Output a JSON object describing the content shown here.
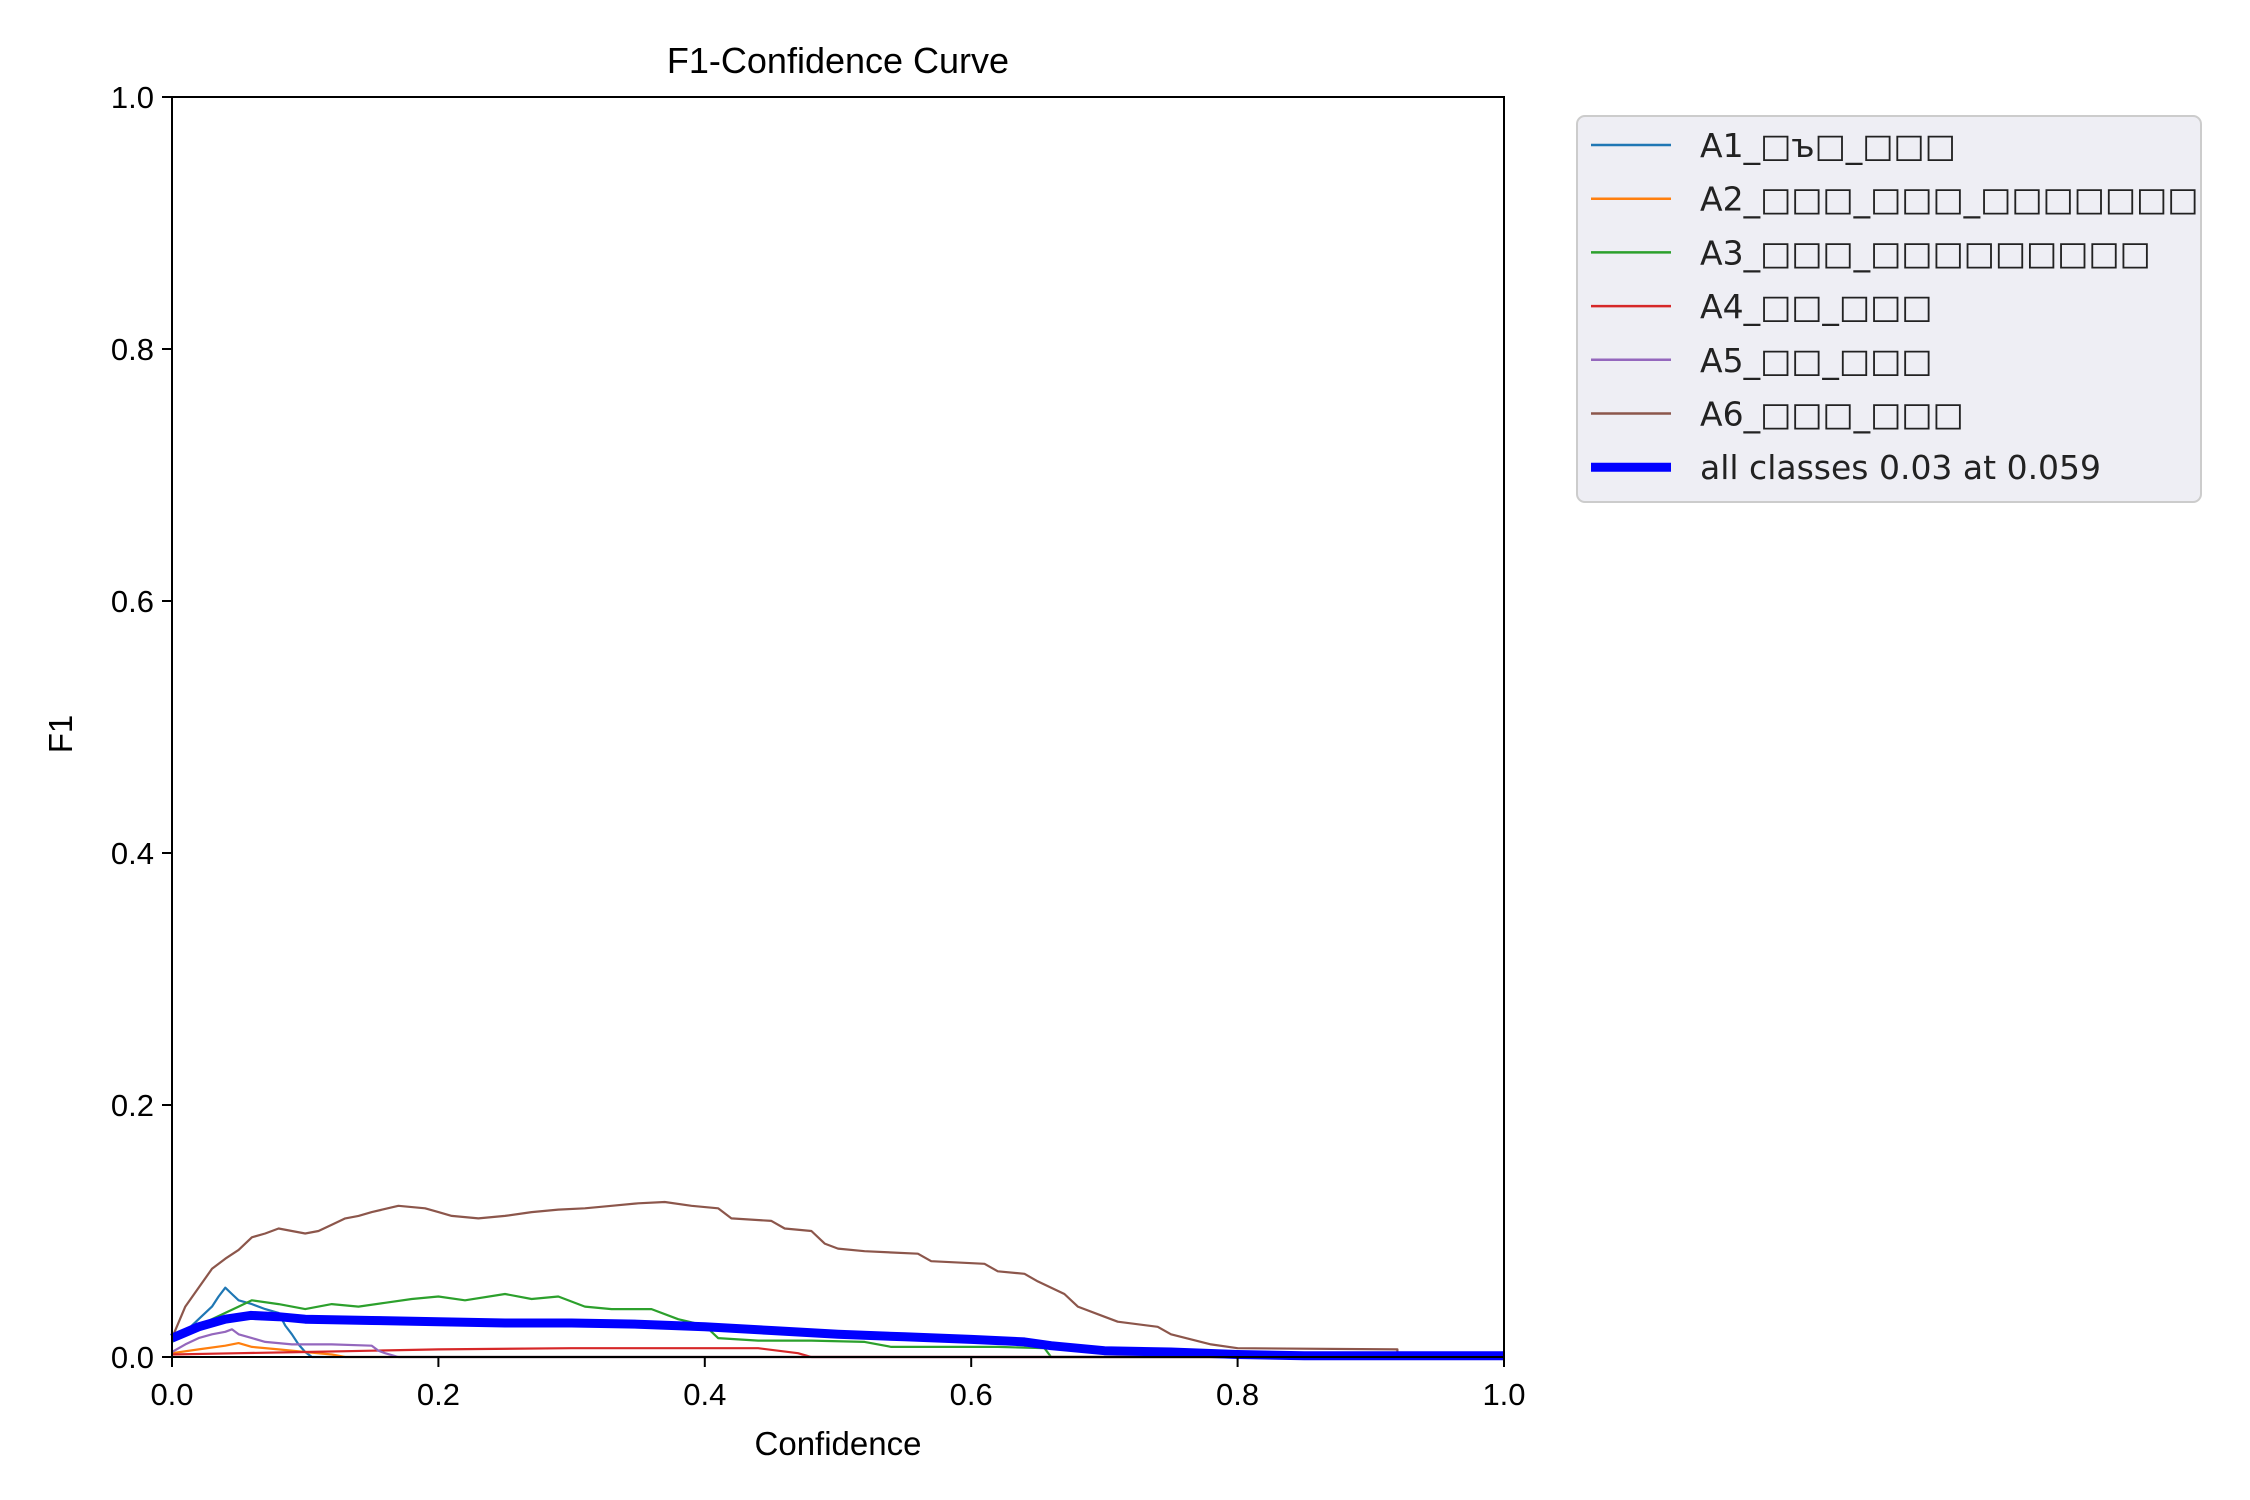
{
  "chart_data": {
    "type": "line",
    "title": "F1-Confidence Curve",
    "xlabel": "Confidence",
    "ylabel": "F1",
    "xlim": [
      0.0,
      1.0
    ],
    "ylim": [
      0.0,
      1.0
    ],
    "xticks": [
      "0.0",
      "0.2",
      "0.4",
      "0.6",
      "0.8",
      "1.0"
    ],
    "yticks": [
      "0.0",
      "0.2",
      "0.4",
      "0.6",
      "0.8",
      "1.0"
    ],
    "grid": false,
    "legend_position": "outside-top-right",
    "series": [
      {
        "name": "A1_□ъ□_□□□",
        "color": "#1f77b4",
        "points": [
          [
            0.0,
            0.012
          ],
          [
            0.01,
            0.02
          ],
          [
            0.02,
            0.03
          ],
          [
            0.03,
            0.04
          ],
          [
            0.035,
            0.048
          ],
          [
            0.04,
            0.055
          ],
          [
            0.045,
            0.05
          ],
          [
            0.05,
            0.045
          ],
          [
            0.06,
            0.042
          ],
          [
            0.07,
            0.038
          ],
          [
            0.08,
            0.035
          ],
          [
            0.085,
            0.025
          ],
          [
            0.09,
            0.018
          ],
          [
            0.095,
            0.01
          ],
          [
            0.1,
            0.004
          ],
          [
            0.105,
            0.0
          ],
          [
            1.0,
            0.0
          ]
        ]
      },
      {
        "name": "A2_□□□_□□□_□□□□□□□",
        "color": "#ff7f0e",
        "points": [
          [
            0.0,
            0.003
          ],
          [
            0.02,
            0.006
          ],
          [
            0.04,
            0.009
          ],
          [
            0.05,
            0.011
          ],
          [
            0.06,
            0.008
          ],
          [
            0.08,
            0.006
          ],
          [
            0.1,
            0.004
          ],
          [
            0.12,
            0.002
          ],
          [
            0.13,
            0.0
          ],
          [
            1.0,
            0.0
          ]
        ]
      },
      {
        "name": "A3_□□□_□□□□□□□□□",
        "color": "#2ca02c",
        "points": [
          [
            0.0,
            0.012
          ],
          [
            0.02,
            0.025
          ],
          [
            0.04,
            0.035
          ],
          [
            0.05,
            0.04
          ],
          [
            0.06,
            0.045
          ],
          [
            0.08,
            0.042
          ],
          [
            0.1,
            0.038
          ],
          [
            0.12,
            0.042
          ],
          [
            0.14,
            0.04
          ],
          [
            0.16,
            0.043
          ],
          [
            0.18,
            0.046
          ],
          [
            0.2,
            0.048
          ],
          [
            0.22,
            0.045
          ],
          [
            0.25,
            0.05
          ],
          [
            0.27,
            0.046
          ],
          [
            0.29,
            0.048
          ],
          [
            0.31,
            0.04
          ],
          [
            0.33,
            0.038
          ],
          [
            0.36,
            0.038
          ],
          [
            0.38,
            0.03
          ],
          [
            0.4,
            0.025
          ],
          [
            0.41,
            0.015
          ],
          [
            0.44,
            0.013
          ],
          [
            0.48,
            0.013
          ],
          [
            0.52,
            0.012
          ],
          [
            0.54,
            0.008
          ],
          [
            0.58,
            0.008
          ],
          [
            0.62,
            0.008
          ],
          [
            0.655,
            0.007
          ],
          [
            0.66,
            0.0
          ],
          [
            1.0,
            0.0
          ]
        ]
      },
      {
        "name": "A4_□□_□□□",
        "color": "#d62728",
        "points": [
          [
            0.0,
            0.002
          ],
          [
            0.05,
            0.003
          ],
          [
            0.1,
            0.004
          ],
          [
            0.15,
            0.005
          ],
          [
            0.2,
            0.006
          ],
          [
            0.3,
            0.007
          ],
          [
            0.4,
            0.007
          ],
          [
            0.44,
            0.007
          ],
          [
            0.47,
            0.003
          ],
          [
            0.48,
            0.0
          ],
          [
            1.0,
            0.0
          ]
        ]
      },
      {
        "name": "A5_□□_□□□",
        "color": "#9467bd",
        "points": [
          [
            0.0,
            0.004
          ],
          [
            0.01,
            0.01
          ],
          [
            0.02,
            0.015
          ],
          [
            0.03,
            0.018
          ],
          [
            0.04,
            0.02
          ],
          [
            0.045,
            0.022
          ],
          [
            0.05,
            0.018
          ],
          [
            0.06,
            0.015
          ],
          [
            0.07,
            0.012
          ],
          [
            0.09,
            0.01
          ],
          [
            0.12,
            0.01
          ],
          [
            0.15,
            0.009
          ],
          [
            0.155,
            0.005
          ],
          [
            0.16,
            0.003
          ],
          [
            0.17,
            0.0
          ],
          [
            1.0,
            0.0
          ]
        ]
      },
      {
        "name": "A6_□□□_□□□",
        "color": "#8c564b",
        "points": [
          [
            0.0,
            0.015
          ],
          [
            0.01,
            0.04
          ],
          [
            0.02,
            0.055
          ],
          [
            0.03,
            0.07
          ],
          [
            0.04,
            0.078
          ],
          [
            0.05,
            0.085
          ],
          [
            0.06,
            0.095
          ],
          [
            0.07,
            0.098
          ],
          [
            0.08,
            0.102
          ],
          [
            0.09,
            0.1
          ],
          [
            0.1,
            0.098
          ],
          [
            0.11,
            0.1
          ],
          [
            0.12,
            0.105
          ],
          [
            0.13,
            0.11
          ],
          [
            0.14,
            0.112
          ],
          [
            0.15,
            0.115
          ],
          [
            0.17,
            0.12
          ],
          [
            0.19,
            0.118
          ],
          [
            0.2,
            0.115
          ],
          [
            0.21,
            0.112
          ],
          [
            0.23,
            0.11
          ],
          [
            0.25,
            0.112
          ],
          [
            0.27,
            0.115
          ],
          [
            0.29,
            0.117
          ],
          [
            0.31,
            0.118
          ],
          [
            0.33,
            0.12
          ],
          [
            0.35,
            0.122
          ],
          [
            0.37,
            0.123
          ],
          [
            0.39,
            0.12
          ],
          [
            0.41,
            0.118
          ],
          [
            0.42,
            0.11
          ],
          [
            0.45,
            0.108
          ],
          [
            0.46,
            0.102
          ],
          [
            0.48,
            0.1
          ],
          [
            0.49,
            0.09
          ],
          [
            0.5,
            0.086
          ],
          [
            0.52,
            0.084
          ],
          [
            0.56,
            0.082
          ],
          [
            0.57,
            0.076
          ],
          [
            0.61,
            0.074
          ],
          [
            0.62,
            0.068
          ],
          [
            0.64,
            0.066
          ],
          [
            0.65,
            0.06
          ],
          [
            0.67,
            0.05
          ],
          [
            0.68,
            0.04
          ],
          [
            0.7,
            0.032
          ],
          [
            0.71,
            0.028
          ],
          [
            0.74,
            0.024
          ],
          [
            0.75,
            0.018
          ],
          [
            0.78,
            0.01
          ],
          [
            0.8,
            0.007
          ],
          [
            0.92,
            0.006
          ],
          [
            0.92,
            0.0
          ],
          [
            1.0,
            0.0
          ]
        ]
      },
      {
        "name": "all classes 0.03 at 0.059",
        "color": "#0000ff",
        "thick": true,
        "points": [
          [
            0.0,
            0.015
          ],
          [
            0.02,
            0.024
          ],
          [
            0.04,
            0.03
          ],
          [
            0.059,
            0.033
          ],
          [
            0.08,
            0.032
          ],
          [
            0.1,
            0.03
          ],
          [
            0.15,
            0.029
          ],
          [
            0.2,
            0.028
          ],
          [
            0.25,
            0.027
          ],
          [
            0.3,
            0.027
          ],
          [
            0.35,
            0.026
          ],
          [
            0.4,
            0.024
          ],
          [
            0.45,
            0.021
          ],
          [
            0.5,
            0.018
          ],
          [
            0.55,
            0.016
          ],
          [
            0.6,
            0.014
          ],
          [
            0.64,
            0.012
          ],
          [
            0.66,
            0.009
          ],
          [
            0.7,
            0.005
          ],
          [
            0.75,
            0.004
          ],
          [
            0.8,
            0.002
          ],
          [
            0.85,
            0.001
          ],
          [
            0.9,
            0.001
          ],
          [
            1.0,
            0.001
          ]
        ]
      }
    ]
  }
}
